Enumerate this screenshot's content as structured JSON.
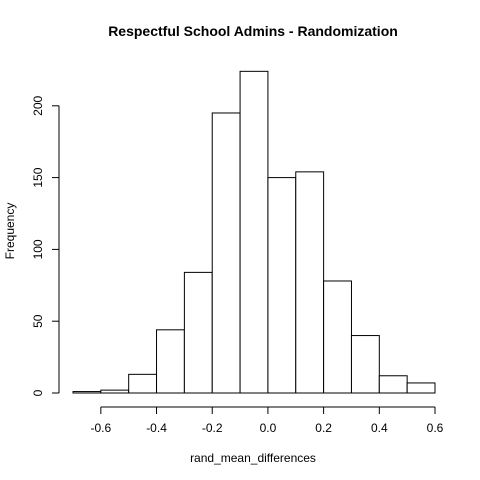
{
  "chart_data": {
    "type": "bar",
    "title": "Respectful School Admins - Randomization",
    "xlabel": "rand_mean_differences",
    "ylabel": "Frequency",
    "bins": [
      {
        "start": -0.7,
        "end": -0.6,
        "count": 1
      },
      {
        "start": -0.6,
        "end": -0.5,
        "count": 2
      },
      {
        "start": -0.5,
        "end": -0.4,
        "count": 13
      },
      {
        "start": -0.4,
        "end": -0.3,
        "count": 44
      },
      {
        "start": -0.3,
        "end": -0.2,
        "count": 84
      },
      {
        "start": -0.2,
        "end": -0.1,
        "count": 195
      },
      {
        "start": -0.1,
        "end": 0.0,
        "count": 224
      },
      {
        "start": 0.0,
        "end": 0.1,
        "count": 150
      },
      {
        "start": 0.1,
        "end": 0.2,
        "count": 154
      },
      {
        "start": 0.2,
        "end": 0.3,
        "count": 78
      },
      {
        "start": 0.3,
        "end": 0.4,
        "count": 40
      },
      {
        "start": 0.4,
        "end": 0.5,
        "count": 12
      },
      {
        "start": 0.5,
        "end": 0.6,
        "count": 7
      }
    ],
    "xlim": [
      -0.7,
      0.6
    ],
    "ylim": [
      0,
      230
    ],
    "x_ticks": [
      -0.6,
      -0.4,
      -0.2,
      0.0,
      0.2,
      0.4,
      0.6
    ],
    "x_tick_labels": [
      "-0.6",
      "-0.4",
      "-0.2",
      "0.0",
      "0.2",
      "0.4",
      "0.6"
    ],
    "y_ticks": [
      0,
      50,
      100,
      150,
      200
    ],
    "y_tick_labels": [
      "0",
      "50",
      "100",
      "150",
      "200"
    ],
    "grid": false,
    "legend": "none"
  }
}
